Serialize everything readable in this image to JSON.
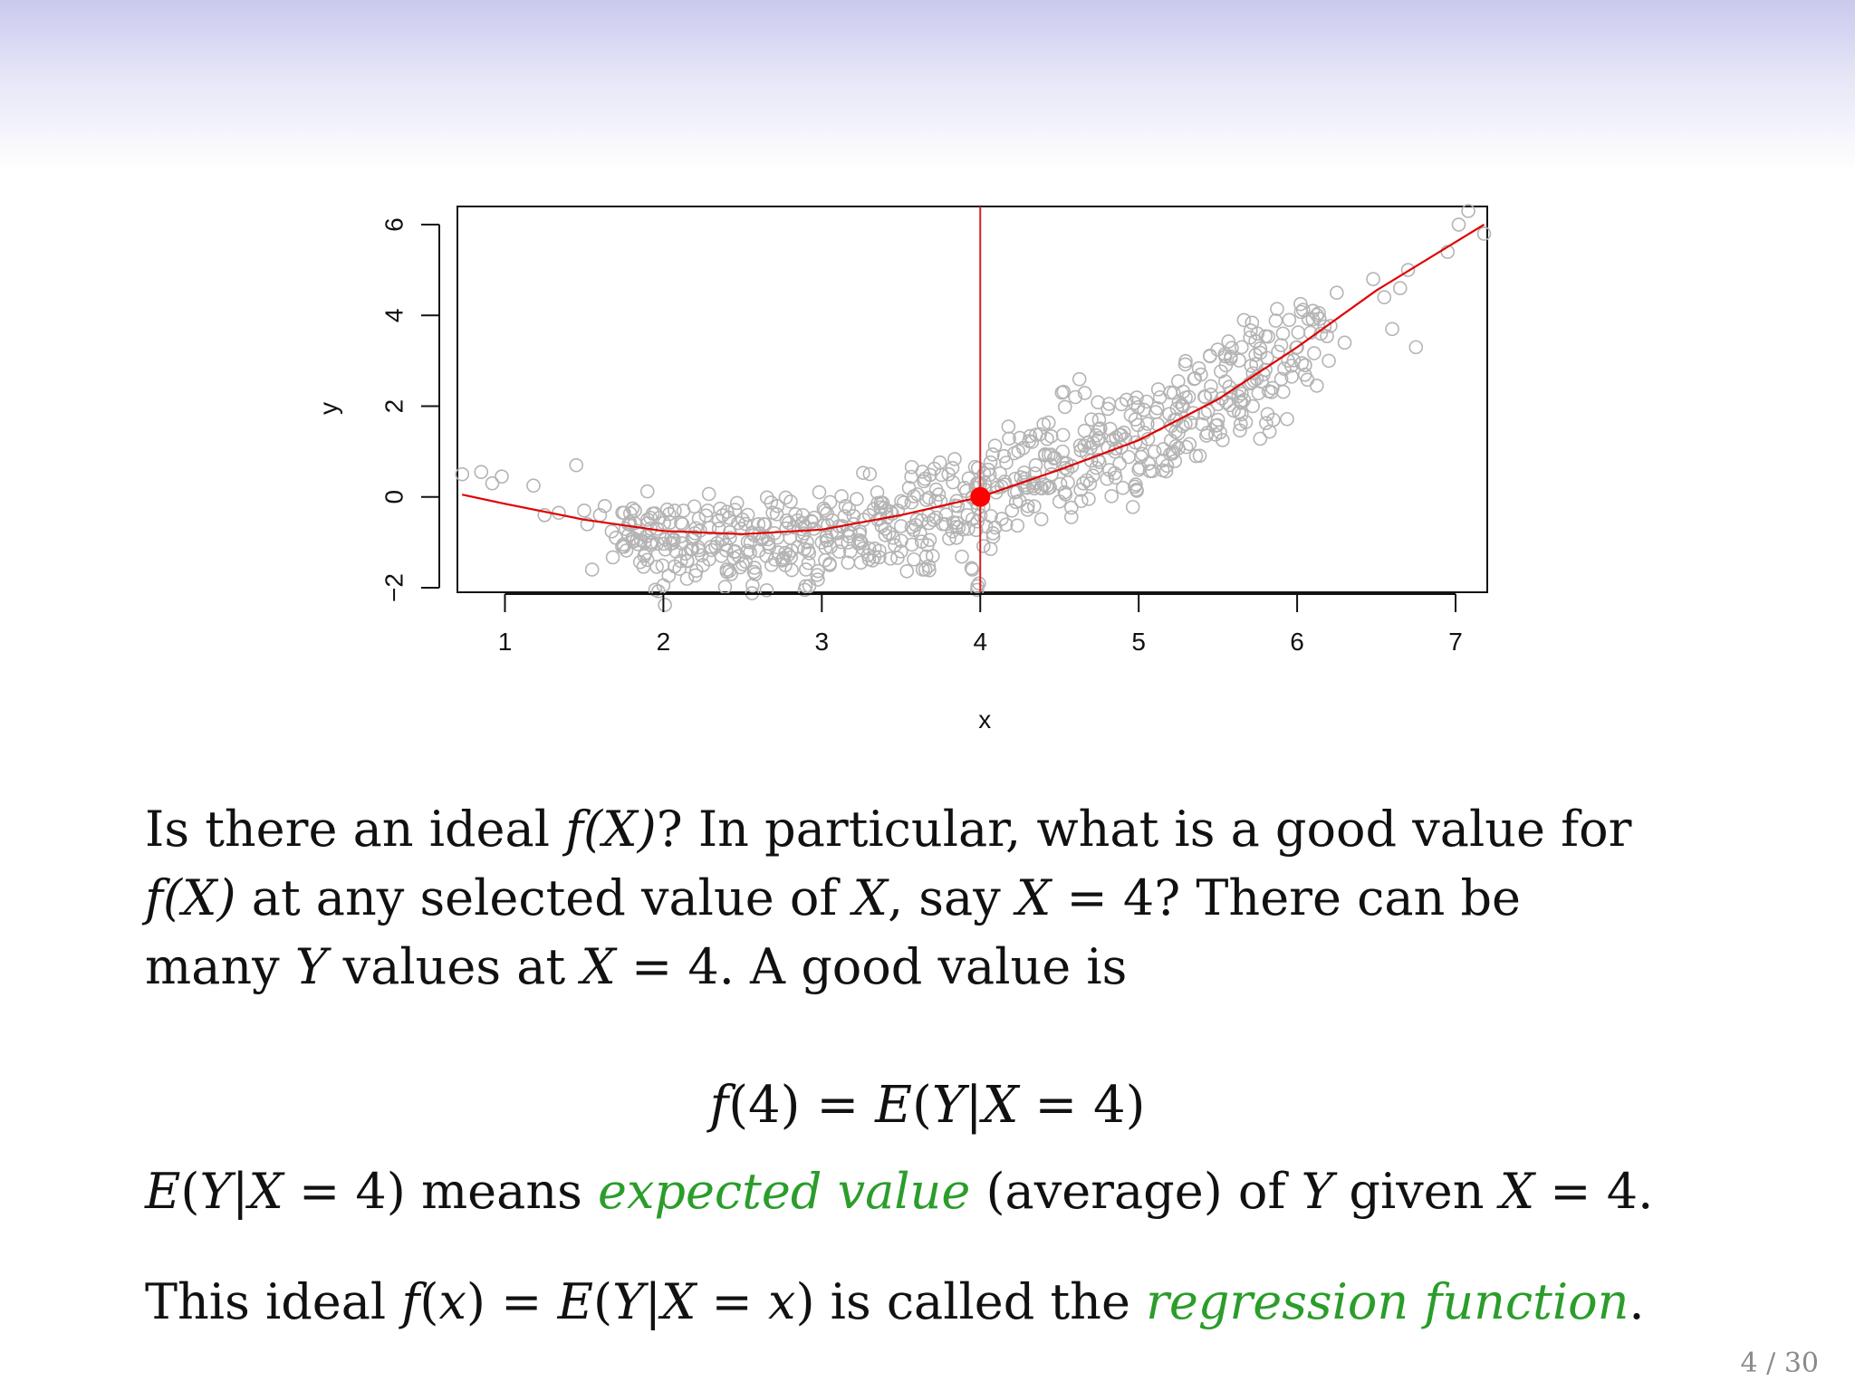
{
  "chart_data": {
    "type": "scatter",
    "xlabel": "x",
    "ylabel": "y",
    "xlim": [
      0.7,
      7.2
    ],
    "ylim": [
      -2.1,
      6.4
    ],
    "x_ticks": [
      1,
      2,
      3,
      4,
      5,
      6,
      7
    ],
    "y_ticks": [
      -2,
      0,
      2,
      4,
      6
    ],
    "x_tick_labels": [
      "1",
      "2",
      "3",
      "4",
      "5",
      "6",
      "7"
    ],
    "y_tick_labels": [
      "−2",
      "0",
      "2",
      "4",
      "6"
    ],
    "grid": false,
    "legend": "none",
    "series": [
      {
        "kind": "points",
        "color": "#b4b4b4",
        "x": [
          0.73,
          0.85,
          0.92,
          0.98,
          1.18,
          1.25,
          1.34,
          1.45,
          1.5,
          1.52,
          1.55,
          1.6,
          1.63,
          1.7,
          1.75,
          1.78,
          1.82,
          1.85,
          1.88,
          1.9,
          1.93,
          1.96,
          2.0,
          2.05,
          2.08,
          2.12,
          2.15,
          2.2,
          2.25,
          2.28,
          2.3,
          2.35,
          2.4,
          2.42,
          2.45,
          2.5,
          2.55,
          2.58,
          2.6,
          2.65,
          2.7,
          2.72,
          2.75,
          2.8,
          2.85,
          2.88,
          2.9,
          2.95,
          3.0,
          3.02,
          3.05,
          3.1,
          3.15,
          3.18,
          3.2,
          3.25,
          3.3,
          3.32,
          3.35,
          3.4,
          3.45,
          3.48,
          3.5,
          3.55,
          3.6,
          3.62,
          3.65,
          3.7,
          3.75,
          3.78,
          3.8,
          3.85,
          3.9,
          3.92,
          3.95,
          3.98,
          4.02,
          4.05,
          4.08,
          4.1,
          4.15,
          4.2,
          4.22,
          4.25,
          4.3,
          4.35,
          4.38,
          4.4,
          4.45,
          4.5,
          4.52,
          4.55,
          4.6,
          4.65,
          4.68,
          4.7,
          4.75,
          4.8,
          4.82,
          4.85,
          4.9,
          4.95,
          4.98,
          5.0,
          5.05,
          5.1,
          5.12,
          5.15,
          5.2,
          5.25,
          5.28,
          5.3,
          5.35,
          5.4,
          5.42,
          5.45,
          5.5,
          5.55,
          5.58,
          5.6,
          5.65,
          5.7,
          5.72,
          5.75,
          5.8,
          5.85,
          5.88,
          5.9,
          5.95,
          6.0,
          6.05,
          6.1,
          6.15,
          6.2,
          6.25,
          6.3,
          6.48,
          6.55,
          6.6,
          6.65,
          6.7,
          6.75,
          6.95,
          7.02,
          7.08,
          7.18
        ],
        "y": [
          0.5,
          0.55,
          0.3,
          0.45,
          0.25,
          -0.4,
          -0.35,
          0.7,
          -0.3,
          -0.6,
          -1.6,
          -0.4,
          -0.2,
          -0.9,
          -1.1,
          -0.6,
          -0.3,
          -0.8,
          -1.3,
          -0.5,
          -1.0,
          -0.7,
          -1.95,
          -0.9,
          -1.2,
          -0.6,
          -1.4,
          -0.8,
          -1.5,
          -0.3,
          -1.1,
          -0.7,
          -1.6,
          -0.9,
          -1.2,
          -0.5,
          -1.0,
          -1.7,
          -0.6,
          -1.3,
          -0.8,
          -0.2,
          -1.4,
          -0.9,
          -1.1,
          -0.4,
          -1.6,
          -0.7,
          -1.0,
          -0.3,
          -1.5,
          -0.8,
          -0.2,
          -1.2,
          -0.6,
          -1.0,
          -0.4,
          -1.4,
          0.1,
          -0.7,
          -0.9,
          -0.3,
          -1.2,
          0.2,
          -0.5,
          -0.8,
          0.4,
          -1.3,
          -0.1,
          -0.6,
          0.5,
          -0.9,
          0.2,
          -0.4,
          -1.6,
          0.3,
          -0.2,
          0.6,
          -0.8,
          0.1,
          0.9,
          -0.3,
          0.4,
          1.3,
          -0.2,
          0.7,
          0.2,
          1.6,
          0.5,
          -0.1,
          1.0,
          0.6,
          2.2,
          0.3,
          1.2,
          0.8,
          1.7,
          0.4,
          1.5,
          1.0,
          0.2,
          1.8,
          1.2,
          0.6,
          2.1,
          1.0,
          1.6,
          0.8,
          2.3,
          1.4,
          2.0,
          1.1,
          2.6,
          1.6,
          2.2,
          3.1,
          1.7,
          2.9,
          2.3,
          1.9,
          3.3,
          2.5,
          2.0,
          3.6,
          2.8,
          1.7,
          3.2,
          2.6,
          3.9,
          3.3,
          2.9,
          4.1,
          3.6,
          3.0,
          4.5,
          3.4,
          4.8,
          4.4,
          3.7,
          4.6,
          5.0,
          3.3,
          5.4,
          6.0,
          6.3,
          5.8
        ]
      },
      {
        "kind": "line",
        "color": "#e00000",
        "x": [
          0.73,
          1.0,
          1.5,
          2.0,
          2.5,
          3.0,
          3.5,
          4.0,
          4.5,
          5.0,
          5.5,
          6.0,
          6.5,
          7.18
        ],
        "y": [
          0.05,
          -0.15,
          -0.5,
          -0.75,
          -0.82,
          -0.72,
          -0.4,
          0.0,
          0.6,
          1.25,
          2.15,
          3.3,
          4.55,
          6.0
        ]
      }
    ],
    "vline_x": 4,
    "highlight_point": {
      "x": 4,
      "y": 0.0,
      "color": "#ff0000"
    },
    "vline_color": "#d42020"
  },
  "text": {
    "para1_a": "Is there an ideal ",
    "fX_1": "f(X)",
    "para1_b": "? In particular, what is a good value for",
    "fX_2": "f(X)",
    "para1_c": " at any selected value of ",
    "X_1": "X",
    "para1_d": ", say ",
    "X_eq_4_1": "X",
    "para1_e": " = 4? There can be",
    "para1_f": "many ",
    "Y_1": "Y",
    "para1_g": " values at ",
    "X_2": "X",
    "para1_h": " = 4. A good value is",
    "equation_lhs": "f",
    "equation_lhs_arg": "(4) = ",
    "equation_E": "E",
    "equation_rhs": "(",
    "equation_Y": "Y",
    "equation_bar": "|",
    "equation_X": "X",
    "equation_tail": " = 4)",
    "para2_E": "E",
    "para2_open": "(",
    "para2_Y": "Y",
    "para2_bar": "|",
    "para2_X": "X",
    "para2_eq": " = 4) means ",
    "para2_green": "expected value",
    "para2_mid": " (average) of ",
    "para2_Y2": "Y",
    "para2_given": " given ",
    "para2_X2": "X",
    "para2_end": " = 4.",
    "para3_a": "This ideal ",
    "para3_f": "f",
    "para3_open": "(",
    "para3_x": "x",
    "para3_eq": ") = ",
    "para3_E": "E",
    "para3_open2": "(",
    "para3_Y": "Y",
    "para3_bar": "|",
    "para3_X": "X",
    "para3_eq2": " = ",
    "para3_x2": "x",
    "para3_close": ") is called the ",
    "para3_green": "regression function",
    "para3_end": ".",
    "page_number": "4 / 30"
  },
  "colors": {
    "header_gradient_top": "#c9c9ee",
    "emphasis_green": "#2a9d2a"
  }
}
